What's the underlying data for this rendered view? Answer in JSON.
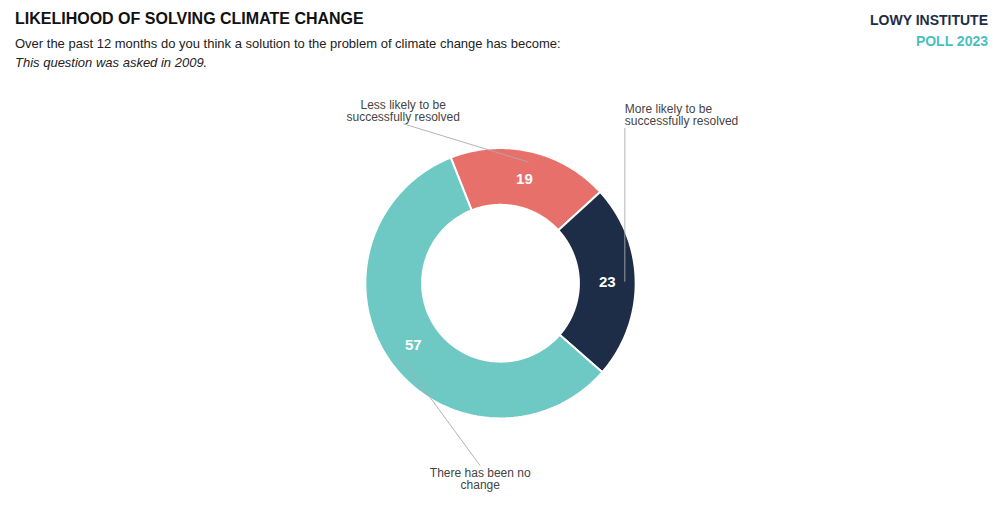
{
  "chart_data": {
    "type": "donut",
    "title": "LIKELIHOOD OF SOLVING CLIMATE CHANGE",
    "subtitle": "Over the past 12 months do you think a solution to the problem of climate change has become:",
    "annotations": [
      {
        "text": "This question was asked in 2009.",
        "style": "italic"
      },
      {
        "text": "LOWY INSTITUTE",
        "color": "#1e2d47"
      },
      {
        "text": "POLL 2023",
        "color": "#4bbfbf"
      }
    ],
    "categories": [
      "Less likely to be\nsuccessfully resolved",
      "More likely to be\nsuccessfully resolved",
      "There has been no\nchange"
    ],
    "values": [
      19,
      23,
      57
    ],
    "colors": [
      "#e8706a",
      "#1e2d47",
      "#6ec9c4"
    ],
    "data_labels": true
  }
}
